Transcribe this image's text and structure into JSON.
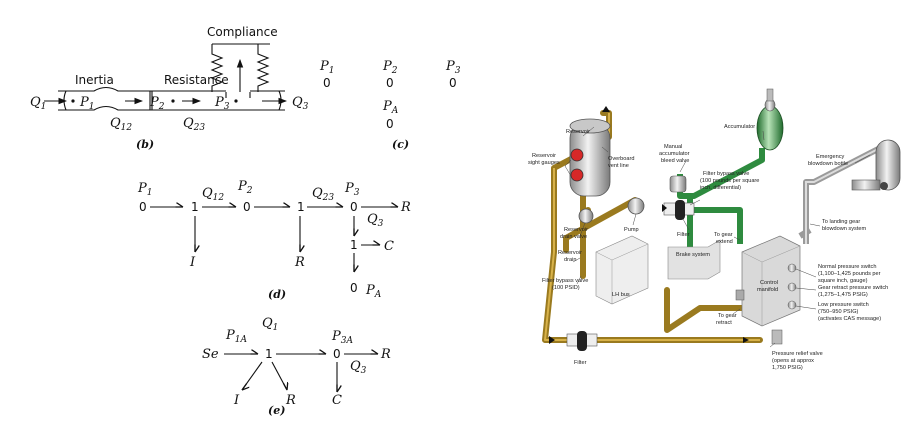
{
  "fig_b": {
    "compliance": "Compliance",
    "inertia": "Inertia",
    "resistance": "Resistance",
    "q1": "Q",
    "q1s": "1",
    "p1": "P",
    "p1s": "1",
    "p2": "P",
    "p2s": "2",
    "p3": "P",
    "p3s": "3",
    "q3": "Q",
    "q3s": "3",
    "q12": "Q",
    "q12s": "12",
    "q23": "Q",
    "q23s": "23",
    "caption": "(b)"
  },
  "fig_c": {
    "p1": "P",
    "p1s": "1",
    "p2": "P",
    "p2s": "2",
    "p3": "P",
    "p3s": "3",
    "v1": "0",
    "v2": "0",
    "v3": "0",
    "pa": "P",
    "pas": "A",
    "va": "0",
    "caption": "(c)"
  },
  "fig_d": {
    "p1": "P",
    "p1s": "1",
    "p2": "P",
    "p2s": "2",
    "p3": "P",
    "p3s": "3",
    "q12": "Q",
    "q12s": "12",
    "q23": "Q",
    "q23s": "23",
    "q3": "Q",
    "q3s": "3",
    "n0a": "0",
    "n1a": "1",
    "n0b": "0",
    "n1b": "1",
    "n0c": "0",
    "n1c": "1",
    "n0d": "0",
    "i": "I",
    "r1": "R",
    "r2": "R",
    "c": "C",
    "pa": "P",
    "pas": "A",
    "caption": "(d)"
  },
  "fig_e": {
    "se": "Se",
    "p1a": "P",
    "p1as": "1A",
    "q1": "Q",
    "q1s": "1",
    "p3a": "P",
    "p3as": "3A",
    "n1": "1",
    "n0": "0",
    "r1": "R",
    "r2": "R",
    "q3": "Q",
    "q3s": "3",
    "i": "I",
    "c": "C",
    "caption": "(e)"
  },
  "hydraulic": {
    "labels": {
      "reservoir": "Reservoir",
      "overboard": [
        "Overboard",
        "vent line"
      ],
      "sight_gauges": [
        "Reservoir",
        "sight gauges"
      ],
      "manual_bleed": [
        "Manual",
        "accumulator",
        "bleed valve"
      ],
      "accumulator": "Accumulator",
      "emergency": [
        "Emergency",
        "blowdown bottle"
      ],
      "filter_bypass_top": [
        "Filter bypass valve",
        "(100 pounds per square",
        "inch, differential)"
      ],
      "drain_valve": [
        "Reservoir",
        "drain valve"
      ],
      "reservoir_drain": [
        "Reservoir",
        "drain"
      ],
      "pump": "Pump",
      "filter_top": "Filter",
      "to_gear_extend": [
        "To gear",
        "extend"
      ],
      "to_landing_gear": [
        "To landing gear",
        "blowdown system"
      ],
      "brake_system": "Brake system",
      "control_manifold": [
        "Control",
        "manifold"
      ],
      "normal_pressure": [
        "Normal pressure switch",
        "(1,100–1,425 pounds per",
        "square inch, gauge)"
      ],
      "gear_retract_switch": [
        "Gear retract pressure switch",
        "(1,275–1,475 PSIG)"
      ],
      "low_pressure": [
        "Low pressure switch",
        "(750–950 PSIG)",
        "(activates CAS message)"
      ],
      "filter_bypass_bottom": [
        "Filter bypass valve",
        "(100 PSID)"
      ],
      "lh_bus": "LH bus",
      "to_gear_retract": [
        "To gear",
        "retract"
      ],
      "filter_bottom": "Filter",
      "relief_valve": [
        "Pressure relief valve",
        "(opens at approx",
        "1,750 PSIG)"
      ]
    },
    "colors": {
      "return": "#9a7a1f",
      "pressure": "#2e8b3f",
      "emergency": "#9a9a9a"
    }
  }
}
